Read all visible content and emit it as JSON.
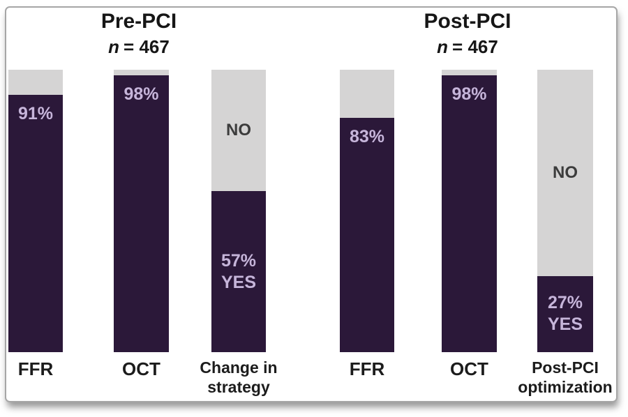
{
  "chart_data": {
    "type": "bar",
    "subtype": "100-percent-stacked-columns",
    "title": "",
    "xlabel": "",
    "ylabel": "",
    "ylim": [
      0,
      100
    ],
    "grid": false,
    "legend": "none",
    "colors": {
      "filled_segment": "#2b1839",
      "remainder_segment": "#d5d4d4",
      "pct_text": "#c6b5da",
      "no_text": "#3c3c3c",
      "label_text": "#1c1c1c"
    },
    "groups": [
      {
        "title": "Pre-PCI",
        "n": {
          "italic": "n",
          "rest": "= 467"
        },
        "bars": [
          {
            "category": "FFR",
            "label_lines": [
              "FFR"
            ],
            "value_pct": 91,
            "value_label": "91%",
            "value_label_extra": "",
            "remainder_label": "",
            "value_label_position": "top"
          },
          {
            "category": "OCT",
            "label_lines": [
              "OCT"
            ],
            "value_pct": 98,
            "value_label": "98%",
            "value_label_extra": "",
            "remainder_label": "",
            "value_label_position": "top"
          },
          {
            "category": "Change in strategy",
            "label_lines": [
              "Change in",
              "strategy"
            ],
            "value_pct": 57,
            "value_label": "57%",
            "value_label_extra": "YES",
            "remainder_label": "NO",
            "value_label_position": "middle"
          }
        ]
      },
      {
        "title": "Post-PCI",
        "n": {
          "italic": "n",
          "rest": "= 467"
        },
        "bars": [
          {
            "category": "FFR",
            "label_lines": [
              "FFR"
            ],
            "value_pct": 83,
            "value_label": "83%",
            "value_label_extra": "",
            "remainder_label": "",
            "value_label_position": "top"
          },
          {
            "category": "OCT",
            "label_lines": [
              "OCT"
            ],
            "value_pct": 98,
            "value_label": "98%",
            "value_label_extra": "",
            "remainder_label": "",
            "value_label_position": "top"
          },
          {
            "category": "Post-PCI optimization",
            "label_lines": [
              "Post-PCI",
              "optimization"
            ],
            "value_pct": 27,
            "value_label": "27%",
            "value_label_extra": "YES",
            "remainder_label": "NO",
            "value_label_position": "middle"
          }
        ]
      }
    ]
  }
}
